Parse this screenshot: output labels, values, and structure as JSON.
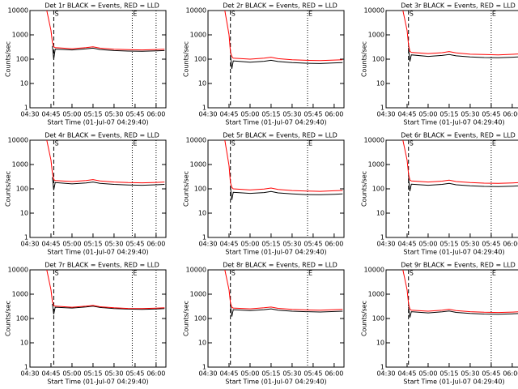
{
  "chart_data": [
    {
      "type": "line",
      "title": "Det 1r BLACK = Events, RED = LLD",
      "ylabel": "Counts/sec",
      "xlabel": "Start Time (01-Jul-07 04:29:40)",
      "log_y": true,
      "xlim": [
        "04:30",
        "06:07"
      ],
      "xticks": [
        "04:30",
        "04:45",
        "05:00",
        "05:15",
        "05:30",
        "05:45",
        "06:00"
      ],
      "ylim": [
        1,
        10000
      ],
      "yticks": [
        1,
        10,
        100,
        1000,
        10000
      ],
      "vlines": [
        {
          "x": "04:47",
          "style": "dashed",
          "label": "S"
        },
        {
          "x": "05:43",
          "style": "dotted",
          "label": "E"
        },
        {
          "x": "06:00",
          "style": "dotted"
        }
      ],
      "x": [
        "04:42",
        "04:45",
        "04:46",
        "04:47",
        "04:48",
        "05:00",
        "05:10",
        "05:15",
        "05:20",
        "05:30",
        "05:40",
        "05:50",
        "06:00",
        "06:06"
      ],
      "series": [
        {
          "color": "#000000",
          "values": [
            null,
            null,
            350,
            100,
            260,
            240,
            265,
            285,
            250,
            225,
            215,
            210,
            220,
            225
          ]
        },
        {
          "color": "#ff0000",
          "values": [
            10000,
            1500,
            500,
            320,
            300,
            270,
            300,
            320,
            285,
            255,
            245,
            240,
            250,
            255
          ]
        }
      ]
    },
    {
      "type": "line",
      "title": "Det 2r BLACK = Events, RED = LLD",
      "ylabel": "Counts/sec",
      "xlabel": "Start Time (01-Jul-07 04:29:40)",
      "log_y": true,
      "xlim": [
        "04:30",
        "06:07"
      ],
      "xticks": [
        "04:30",
        "04:45",
        "05:00",
        "05:15",
        "05:30",
        "05:45",
        "06:00"
      ],
      "ylim": [
        1,
        10000
      ],
      "yticks": [
        1,
        10,
        100,
        1000,
        10000
      ],
      "vlines": [
        {
          "x": "04:46",
          "style": "dashed",
          "label": "S"
        },
        {
          "x": "05:41",
          "style": "dotted",
          "label": "E"
        }
      ],
      "x": [
        "04:42",
        "04:45",
        "04:46",
        "04:47",
        "04:48",
        "05:00",
        "05:10",
        "05:15",
        "05:20",
        "05:30",
        "05:40",
        "05:50",
        "06:00",
        "06:06"
      ],
      "series": [
        {
          "color": "#000000",
          "values": [
            null,
            null,
            150,
            40,
            85,
            75,
            82,
            90,
            80,
            72,
            68,
            66,
            70,
            72
          ]
        },
        {
          "color": "#ff0000",
          "values": [
            10000,
            1000,
            200,
            130,
            110,
            100,
            110,
            120,
            105,
            95,
            90,
            88,
            92,
            95
          ]
        }
      ]
    },
    {
      "type": "line",
      "title": "Det 3r BLACK = Events, RED = LLD",
      "ylabel": "Counts/sec",
      "xlabel": "Start Time (01-Jul-07 04:29:40)",
      "log_y": true,
      "xlim": [
        "04:30",
        "06:07"
      ],
      "xticks": [
        "04:30",
        "04:45",
        "05:00",
        "05:15",
        "05:30",
        "05:45",
        "06:00"
      ],
      "ylim": [
        1,
        10000
      ],
      "yticks": [
        1,
        10,
        100,
        1000,
        10000
      ],
      "vlines": [
        {
          "x": "04:46",
          "style": "dashed",
          "label": "S"
        },
        {
          "x": "05:45",
          "style": "dotted",
          "label": "E"
        }
      ],
      "x": [
        "04:42",
        "04:45",
        "04:46",
        "04:47",
        "04:48",
        "05:00",
        "05:10",
        "05:15",
        "05:20",
        "05:30",
        "05:40",
        "05:50",
        "06:00",
        "06:06"
      ],
      "series": [
        {
          "color": "#000000",
          "values": [
            null,
            null,
            300,
            80,
            150,
            130,
            142,
            155,
            137,
            124,
            117,
            115,
            120,
            125
          ]
        },
        {
          "color": "#ff0000",
          "values": [
            10000,
            1500,
            400,
            210,
            190,
            170,
            185,
            205,
            180,
            160,
            155,
            150,
            158,
            165
          ]
        }
      ]
    },
    {
      "type": "line",
      "title": "Det 4r BLACK = Events, RED = LLD",
      "ylabel": "Counts/sec",
      "xlabel": "Start Time (01-Jul-07 04:29:40)",
      "log_y": true,
      "xlim": [
        "04:30",
        "06:07"
      ],
      "xticks": [
        "04:30",
        "04:45",
        "05:00",
        "05:15",
        "05:30",
        "05:45",
        "06:00"
      ],
      "ylim": [
        1,
        10000
      ],
      "yticks": [
        1,
        10,
        100,
        1000,
        10000
      ],
      "vlines": [
        {
          "x": "04:47",
          "style": "dashed",
          "label": "S"
        },
        {
          "x": "05:43",
          "style": "dotted",
          "label": "E"
        },
        {
          "x": "06:00",
          "style": "dotted"
        }
      ],
      "x": [
        "04:42",
        "04:45",
        "04:46",
        "04:47",
        "04:48",
        "05:00",
        "05:10",
        "05:15",
        "05:20",
        "05:30",
        "05:40",
        "05:50",
        "06:00",
        "06:06"
      ],
      "series": [
        {
          "color": "#000000",
          "values": [
            null,
            null,
            300,
            90,
            180,
            160,
            175,
            190,
            168,
            152,
            144,
            140,
            147,
            152
          ]
        },
        {
          "color": "#ff0000",
          "values": [
            10000,
            1500,
            450,
            240,
            220,
            200,
            220,
            240,
            210,
            190,
            180,
            176,
            184,
            190
          ]
        }
      ]
    },
    {
      "type": "line",
      "title": "Det 5r BLACK = Events, RED = LLD",
      "ylabel": "Counts/sec",
      "xlabel": "Start Time (01-Jul-07 04:29:40)",
      "log_y": true,
      "xlim": [
        "04:30",
        "06:07"
      ],
      "xticks": [
        "04:30",
        "04:45",
        "05:00",
        "05:15",
        "05:30",
        "05:45",
        "06:00"
      ],
      "ylim": [
        1,
        10000
      ],
      "yticks": [
        1,
        10,
        100,
        1000,
        10000
      ],
      "vlines": [
        {
          "x": "04:46",
          "style": "dashed",
          "label": "S"
        },
        {
          "x": "05:41",
          "style": "dotted",
          "label": "E"
        }
      ],
      "x": [
        "04:42",
        "04:45",
        "04:46",
        "04:47",
        "04:48",
        "05:00",
        "05:10",
        "05:15",
        "05:20",
        "05:30",
        "05:40",
        "05:50",
        "06:00",
        "06:06"
      ],
      "series": [
        {
          "color": "#000000",
          "values": [
            null,
            null,
            120,
            35,
            72,
            65,
            70,
            78,
            68,
            62,
            58,
            57,
            60,
            62
          ]
        },
        {
          "color": "#ff0000",
          "values": [
            10000,
            900,
            180,
            115,
            100,
            90,
            98,
            108,
            95,
            85,
            81,
            79,
            83,
            86
          ]
        }
      ]
    },
    {
      "type": "line",
      "title": "Det 6r BLACK = Events, RED = LLD",
      "ylabel": "Counts/sec",
      "xlabel": "Start Time (01-Jul-07 04:29:40)",
      "log_y": true,
      "xlim": [
        "04:30",
        "06:07"
      ],
      "xticks": [
        "04:30",
        "04:45",
        "05:00",
        "05:15",
        "05:30",
        "05:45",
        "06:00"
      ],
      "ylim": [
        1,
        10000
      ],
      "yticks": [
        1,
        10,
        100,
        1000,
        10000
      ],
      "vlines": [
        {
          "x": "04:46",
          "style": "dashed",
          "label": "S"
        },
        {
          "x": "05:45",
          "style": "dotted",
          "label": "E"
        }
      ],
      "x": [
        "04:42",
        "04:45",
        "04:46",
        "04:47",
        "04:48",
        "05:00",
        "05:10",
        "05:15",
        "05:20",
        "05:30",
        "05:40",
        "05:50",
        "06:00",
        "06:06"
      ],
      "series": [
        {
          "color": "#000000",
          "values": [
            null,
            null,
            300,
            80,
            155,
            140,
            152,
            168,
            147,
            133,
            126,
            123,
            129,
            133
          ]
        },
        {
          "color": "#ff0000",
          "values": [
            10000,
            1500,
            420,
            230,
            210,
            190,
            208,
            228,
            200,
            180,
            171,
            167,
            175,
            180
          ]
        }
      ]
    },
    {
      "type": "line",
      "title": "Det 7r BLACK = Events, RED = LLD",
      "ylabel": "Counts/sec",
      "xlabel": "Start Time (01-Jul-07 04:29:40)",
      "log_y": true,
      "xlim": [
        "04:30",
        "06:07"
      ],
      "xticks": [
        "04:30",
        "04:45",
        "05:00",
        "05:15",
        "05:30",
        "05:45",
        "06:00"
      ],
      "ylim": [
        1,
        10000
      ],
      "yticks": [
        1,
        10,
        100,
        1000,
        10000
      ],
      "vlines": [
        {
          "x": "04:47",
          "style": "dashed",
          "label": "S"
        },
        {
          "x": "05:43",
          "style": "dotted",
          "label": "E"
        },
        {
          "x": "06:00",
          "style": "dotted"
        }
      ],
      "x": [
        "04:42",
        "04:45",
        "04:46",
        "04:47",
        "04:48",
        "05:00",
        "05:10",
        "05:15",
        "05:20",
        "05:30",
        "05:40",
        "05:50",
        "06:00",
        "06:06"
      ],
      "series": [
        {
          "color": "#000000",
          "values": [
            null,
            null,
            400,
            150,
            290,
            270,
            297,
            320,
            283,
            256,
            243,
            238,
            248,
            256
          ]
        },
        {
          "color": "#ff0000",
          "values": [
            10000,
            1500,
            500,
            340,
            320,
            290,
            320,
            345,
            305,
            275,
            260,
            255,
            267,
            275
          ]
        }
      ]
    },
    {
      "type": "line",
      "title": "Det 8r BLACK = Events, RED = LLD",
      "ylabel": "Counts/sec",
      "xlabel": "Start Time (01-Jul-07 04:29:40)",
      "log_y": true,
      "xlim": [
        "04:30",
        "06:07"
      ],
      "xticks": [
        "04:30",
        "04:45",
        "05:00",
        "05:15",
        "05:30",
        "05:45",
        "06:00"
      ],
      "ylim": [
        1,
        10000
      ],
      "yticks": [
        1,
        10,
        100,
        1000,
        10000
      ],
      "vlines": [
        {
          "x": "04:46",
          "style": "dashed",
          "label": "S"
        },
        {
          "x": "05:41",
          "style": "dotted",
          "label": "E"
        }
      ],
      "x": [
        "04:42",
        "04:45",
        "04:46",
        "04:47",
        "04:48",
        "05:00",
        "05:10",
        "05:15",
        "05:20",
        "05:30",
        "05:40",
        "05:50",
        "06:00",
        "06:06"
      ],
      "series": [
        {
          "color": "#000000",
          "values": [
            null,
            null,
            350,
            120,
            230,
            210,
            230,
            250,
            220,
            200,
            190,
            185,
            193,
            200
          ]
        },
        {
          "color": "#ff0000",
          "values": [
            10000,
            1500,
            450,
            290,
            270,
            250,
            275,
            295,
            262,
            237,
            225,
            220,
            230,
            237
          ]
        }
      ]
    },
    {
      "type": "line",
      "title": "Det 9r BLACK = Events, RED = LLD",
      "ylabel": "Counts/sec",
      "xlabel": "Start Time (01-Jul-07 04:29:40)",
      "log_y": true,
      "xlim": [
        "04:30",
        "06:07"
      ],
      "xticks": [
        "04:30",
        "04:45",
        "05:00",
        "05:15",
        "05:30",
        "05:45",
        "06:00"
      ],
      "ylim": [
        1,
        10000
      ],
      "yticks": [
        1,
        10,
        100,
        1000,
        10000
      ],
      "vlines": [
        {
          "x": "04:46",
          "style": "dashed",
          "label": "S"
        },
        {
          "x": "05:45",
          "style": "dotted",
          "label": "E"
        }
      ],
      "x": [
        "04:42",
        "04:45",
        "04:46",
        "04:47",
        "04:48",
        "05:00",
        "05:10",
        "05:15",
        "05:20",
        "05:30",
        "05:40",
        "05:50",
        "06:00",
        "06:06"
      ],
      "series": [
        {
          "color": "#000000",
          "values": [
            null,
            null,
            300,
            110,
            190,
            170,
            187,
            204,
            178,
            162,
            153,
            150,
            156,
            162
          ]
        },
        {
          "color": "#ff0000",
          "values": [
            10000,
            1500,
            420,
            240,
            220,
            200,
            220,
            240,
            210,
            190,
            180,
            176,
            184,
            190
          ]
        }
      ]
    }
  ]
}
